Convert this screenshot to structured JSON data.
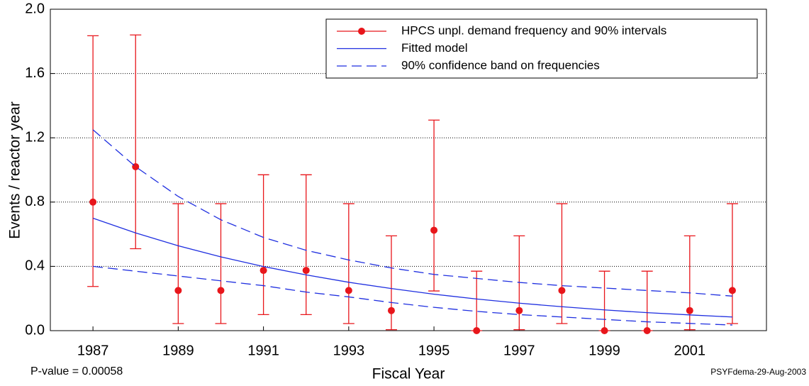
{
  "chart_data": {
    "type": "line",
    "x": [
      1987,
      1988,
      1989,
      1990,
      1991,
      1992,
      1993,
      1994,
      1995,
      1996,
      1997,
      1998,
      1999,
      2000,
      2001,
      2002
    ],
    "series": [
      {
        "name": "HPCS unpl. demand frequency and 90% intervals",
        "color": "#e8161b",
        "values": [
          0.8,
          1.02,
          0.25,
          0.25,
          0.375,
          0.375,
          0.25,
          0.125,
          0.625,
          0,
          0.125,
          0.25,
          0,
          0,
          0.125,
          0.25
        ],
        "lower": [
          0.275,
          0.51,
          0.044,
          0.044,
          0.1,
          0.1,
          0.044,
          0.006,
          0.247,
          0,
          0.006,
          0.044,
          0,
          0,
          0.006,
          0.044
        ],
        "upper": [
          1.835,
          1.84,
          0.79,
          0.79,
          0.97,
          0.97,
          0.79,
          0.59,
          1.31,
          0.37,
          0.59,
          0.79,
          0.37,
          0.37,
          0.59,
          0.79
        ]
      },
      {
        "name": "Fitted model",
        "color": "#1f2fe0",
        "values": [
          0.7,
          0.608,
          0.528,
          0.459,
          0.399,
          0.347,
          0.301,
          0.262,
          0.227,
          0.197,
          0.171,
          0.149,
          0.129,
          0.112,
          0.098,
          0.085
        ]
      },
      {
        "name": "90% confidence band on frequencies",
        "color": "#1f2fe0",
        "dashed": true,
        "lower": [
          0.4,
          0.37,
          0.34,
          0.31,
          0.28,
          0.24,
          0.21,
          0.175,
          0.145,
          0.12,
          0.1,
          0.085,
          0.07,
          0.055,
          0.045,
          0.035
        ],
        "upper": [
          1.25,
          1.02,
          0.835,
          0.69,
          0.58,
          0.5,
          0.44,
          0.39,
          0.35,
          0.325,
          0.3,
          0.28,
          0.265,
          0.25,
          0.235,
          0.215
        ]
      }
    ],
    "xlim": [
      1986,
      2002.8
    ],
    "ylim": [
      0,
      2.0
    ],
    "xticks": [
      1987,
      1989,
      1991,
      1993,
      1995,
      1997,
      1999,
      2001
    ],
    "yticks": [
      {
        "value": 0,
        "label": "0.0"
      },
      {
        "value": 0.4,
        "label": "0.4"
      },
      {
        "value": 0.8,
        "label": "0.8"
      },
      {
        "value": 1.2,
        "label": "1.2"
      },
      {
        "value": 1.6,
        "label": "1.6"
      },
      {
        "value": 2.0,
        "label": "2.0"
      }
    ],
    "xlabel": "Fiscal Year",
    "ylabel": "Events / reactor year",
    "annotations": [
      "P-value = 0.00058",
      "PSYFdema-29-Aug-2003"
    ],
    "grid": true,
    "legend": "upper right"
  }
}
